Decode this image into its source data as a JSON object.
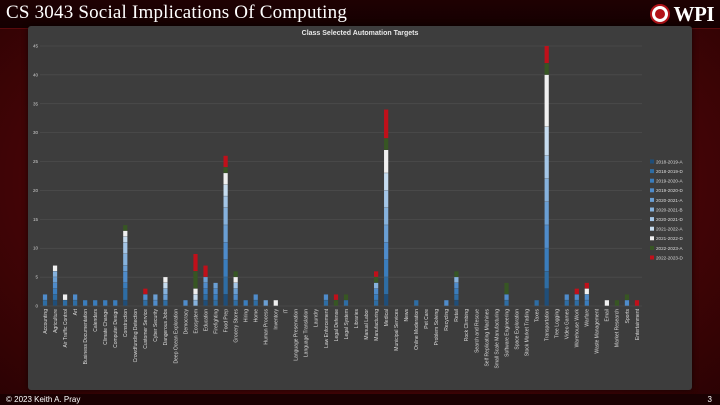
{
  "slide": {
    "title": "CS 3043 Social Implications Of Computing",
    "logo_text": "WPI",
    "footer": "© 2023 Keith A. Pray",
    "page_number": "3"
  },
  "colors": {
    "background": "#5a0709",
    "panel": "#3d3d3d"
  },
  "chart_data": {
    "type": "bar",
    "stacked": true,
    "title": "Class Selected Automation Targets",
    "xlabel": "",
    "ylabel": "",
    "ylim": [
      0,
      45
    ],
    "yticks": [
      0,
      5,
      10,
      15,
      20,
      25,
      30,
      35,
      40,
      45
    ],
    "legend_position": "right",
    "categories": [
      "Accounting",
      "Agriculture",
      "Air Traffic Control",
      "Art",
      "Business Documentation",
      "Calendars",
      "Climate Change",
      "Computer Design",
      "Construction",
      "Crowdfunding Detection",
      "Customer Service",
      "Cyber Security",
      "Dangerous Jobs",
      "Deep Ocean Exploration",
      "Democracy",
      "Ecosystem",
      "Education",
      "Firefighting",
      "Food Prep",
      "Grocery Stores",
      "Hiring",
      "Home",
      "Human Process",
      "Inventory",
      "IT",
      "Language Preservation",
      "Language Translation",
      "Laundry",
      "Law Enforcement",
      "Legal Defense",
      "Legal System",
      "Libraries",
      "Manual Labor",
      "Manufacturing",
      "Medical",
      "Municipal Services",
      "News",
      "Online Moderation",
      "Pet Care",
      "Problem Solving",
      "Recycling",
      "Retail",
      "Rock Climbing",
      "Search and Rescue",
      "Self Replicating Machines",
      "Small Scale Manufacturing",
      "Software Engineering",
      "Space Exploration",
      "Stock Market Trading",
      "Taxes",
      "Transportation",
      "Tree Logging",
      "Video Games",
      "Warehouse Work",
      "Warfare",
      "Waste Management",
      "Email",
      "Market Research",
      "Sports",
      "Entertainment"
    ],
    "series": [
      {
        "name": "2018-2019-A",
        "color": "#1f4e79",
        "values": [
          0,
          1,
          0,
          0,
          0,
          0,
          0,
          0,
          1,
          0,
          0,
          0,
          0,
          0,
          0,
          0,
          1,
          0,
          2,
          0,
          0,
          0,
          0,
          0,
          0,
          0,
          0,
          0,
          0,
          0,
          0,
          0,
          0,
          0,
          2,
          0,
          0,
          0,
          0,
          0,
          0,
          1,
          0,
          0,
          0,
          0,
          0,
          0,
          0,
          0,
          3,
          0,
          0,
          0,
          0,
          0,
          0,
          0,
          0,
          0
        ]
      },
      {
        "name": "2018-2019-D",
        "color": "#2e6da4",
        "values": [
          1,
          1,
          1,
          1,
          0,
          0,
          0,
          0,
          2,
          0,
          1,
          0,
          1,
          0,
          0,
          0,
          1,
          1,
          3,
          1,
          0,
          1,
          0,
          0,
          0,
          0,
          0,
          0,
          1,
          0,
          1,
          0,
          0,
          1,
          3,
          0,
          0,
          1,
          0,
          0,
          0,
          1,
          0,
          0,
          0,
          0,
          1,
          0,
          0,
          1,
          3,
          0,
          1,
          1,
          0,
          0,
          0,
          0,
          0,
          0
        ]
      },
      {
        "name": "2019-2020-A",
        "color": "#3a7dbd",
        "values": [
          0,
          1,
          0,
          0,
          1,
          1,
          1,
          1,
          1,
          0,
          0,
          0,
          0,
          0,
          0,
          0,
          1,
          1,
          3,
          0,
          1,
          0,
          0,
          0,
          0,
          0,
          0,
          0,
          0,
          0,
          0,
          0,
          0,
          1,
          3,
          0,
          0,
          0,
          0,
          0,
          0,
          1,
          0,
          0,
          0,
          0,
          0,
          0,
          0,
          0,
          4,
          0,
          0,
          0,
          1,
          0,
          0,
          0,
          0,
          0
        ]
      },
      {
        "name": "2019-2020-D",
        "color": "#4f8ccb",
        "values": [
          1,
          1,
          0,
          1,
          0,
          0,
          0,
          0,
          2,
          0,
          1,
          1,
          0,
          0,
          1,
          0,
          1,
          1,
          3,
          1,
          0,
          1,
          0,
          0,
          0,
          0,
          0,
          0,
          1,
          0,
          0,
          0,
          0,
          1,
          3,
          0,
          0,
          0,
          0,
          0,
          1,
          1,
          0,
          0,
          0,
          0,
          1,
          0,
          0,
          0,
          4,
          0,
          1,
          1,
          1,
          0,
          0,
          0,
          1,
          0
        ]
      },
      {
        "name": "2020-2021-A",
        "color": "#6a9fd4",
        "values": [
          0,
          1,
          0,
          0,
          0,
          0,
          0,
          0,
          1,
          0,
          0,
          1,
          1,
          0,
          0,
          0,
          1,
          1,
          3,
          1,
          0,
          0,
          1,
          0,
          0,
          0,
          0,
          0,
          0,
          0,
          0,
          0,
          0,
          0,
          3,
          0,
          0,
          0,
          0,
          0,
          0,
          0,
          0,
          0,
          0,
          0,
          0,
          0,
          0,
          0,
          4,
          0,
          0,
          0,
          0,
          0,
          0,
          0,
          0,
          0
        ]
      },
      {
        "name": "2020-2021-B",
        "color": "#86b2dd",
        "values": [
          0,
          1,
          0,
          0,
          0,
          0,
          0,
          0,
          2,
          0,
          0,
          0,
          1,
          0,
          0,
          1,
          0,
          0,
          3,
          0,
          0,
          0,
          0,
          0,
          0,
          0,
          0,
          0,
          0,
          0,
          0,
          0,
          0,
          1,
          3,
          0,
          0,
          0,
          0,
          0,
          0,
          1,
          0,
          0,
          0,
          0,
          0,
          0,
          0,
          0,
          4,
          0,
          0,
          0,
          0,
          0,
          0,
          0,
          0,
          0
        ]
      },
      {
        "name": "2020-2021-D",
        "color": "#a4c6e7",
        "values": [
          0,
          0,
          0,
          0,
          0,
          0,
          0,
          0,
          2,
          0,
          0,
          0,
          0,
          0,
          0,
          0,
          0,
          0,
          2,
          1,
          0,
          0,
          0,
          0,
          0,
          0,
          0,
          0,
          0,
          0,
          0,
          0,
          0,
          0,
          3,
          0,
          0,
          0,
          0,
          0,
          0,
          0,
          0,
          0,
          0,
          0,
          0,
          0,
          0,
          0,
          4,
          0,
          0,
          0,
          0,
          0,
          0,
          0,
          0,
          0
        ]
      },
      {
        "name": "2021-2022-A",
        "color": "#c6dcef",
        "values": [
          0,
          0,
          0,
          0,
          0,
          0,
          0,
          0,
          1,
          0,
          0,
          0,
          1,
          0,
          0,
          1,
          0,
          0,
          2,
          0,
          0,
          0,
          0,
          0,
          0,
          0,
          0,
          0,
          0,
          0,
          0,
          0,
          0,
          0,
          3,
          0,
          0,
          0,
          0,
          0,
          0,
          0,
          0,
          0,
          0,
          0,
          0,
          0,
          0,
          0,
          5,
          0,
          0,
          0,
          0,
          0,
          0,
          0,
          0,
          0
        ]
      },
      {
        "name": "2021-2022-D",
        "color": "#f0f0f0",
        "values": [
          0,
          1,
          1,
          0,
          0,
          0,
          0,
          0,
          1,
          0,
          0,
          0,
          1,
          0,
          0,
          1,
          0,
          0,
          2,
          1,
          0,
          0,
          0,
          1,
          0,
          0,
          0,
          0,
          0,
          0,
          0,
          0,
          0,
          0,
          4,
          0,
          0,
          0,
          0,
          0,
          0,
          0,
          0,
          0,
          0,
          0,
          0,
          0,
          0,
          0,
          9,
          0,
          0,
          0,
          1,
          0,
          1,
          0,
          0,
          0
        ]
      },
      {
        "name": "2022-2023-A",
        "color": "#375623",
        "values": [
          0,
          0,
          0,
          0,
          0,
          0,
          0,
          0,
          1,
          0,
          0,
          0,
          0,
          0,
          0,
          3,
          0,
          0,
          1,
          1,
          0,
          0,
          0,
          0,
          0,
          0,
          0,
          0,
          0,
          1,
          1,
          0,
          0,
          1,
          2,
          0,
          0,
          0,
          0,
          0,
          0,
          1,
          0,
          0,
          0,
          0,
          2,
          0,
          0,
          0,
          2,
          0,
          0,
          0,
          0,
          0,
          0,
          1,
          1,
          0
        ]
      },
      {
        "name": "2022-2023-D",
        "color": "#c0101a",
        "values": [
          0,
          0,
          0,
          0,
          0,
          0,
          0,
          0,
          0,
          0,
          1,
          0,
          0,
          0,
          0,
          3,
          2,
          0,
          2,
          0,
          0,
          0,
          0,
          0,
          0,
          0,
          0,
          0,
          0,
          1,
          0,
          0,
          0,
          1,
          5,
          0,
          0,
          0,
          0,
          0,
          0,
          0,
          0,
          0,
          0,
          0,
          0,
          0,
          0,
          0,
          3,
          0,
          0,
          1,
          1,
          0,
          0,
          0,
          0,
          1
        ]
      }
    ]
  }
}
